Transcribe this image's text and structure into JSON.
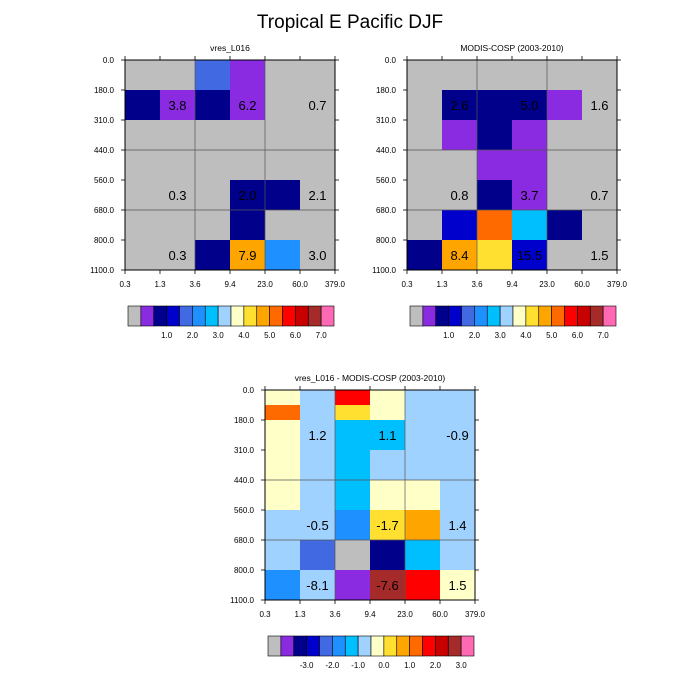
{
  "figure": {
    "title": "Tropical E Pacific DJF"
  },
  "colors": {
    "bg": "#ffffff",
    "text": "#000000",
    "grid": "#555555",
    "abs_scale": [
      "#bebebe",
      "#8a2be2",
      "#00008b",
      "#0000cd",
      "#4169e1",
      "#1e90ff",
      "#00bfff",
      "#a0d2ff",
      "#ffffc8",
      "#ffe030",
      "#ffa500",
      "#ff6a00",
      "#ff0000",
      "#c80000",
      "#a52a2a",
      "#ff69b4"
    ],
    "diff_scale": [
      "#bebebe",
      "#8a2be2",
      "#00008b",
      "#0000cd",
      "#4169e1",
      "#1e90ff",
      "#00bfff",
      "#a0d2ff",
      "#ffffc8",
      "#ffe030",
      "#ffa500",
      "#ff6a00",
      "#ff0000",
      "#c80000",
      "#a52a2a",
      "#ff69b4"
    ]
  },
  "chart_data": [
    {
      "type": "heatmap",
      "title": "vres_L016",
      "x_ticks": [
        "0.3",
        "1.3",
        "3.6",
        "9.4",
        "23.0",
        "60.0",
        "379.0"
      ],
      "y_ticks": [
        "0.0",
        "180.0",
        "310.0",
        "440.0",
        "560.0",
        "680.0",
        "800.0",
        "1100.0"
      ],
      "cells": [
        [
          0,
          0,
          4,
          1,
          0,
          0
        ],
        [
          2,
          1,
          2,
          1,
          0,
          0
        ],
        [
          0,
          0,
          0,
          0,
          0,
          0
        ],
        [
          0,
          0,
          0,
          0,
          0,
          0
        ],
        [
          0,
          0,
          0,
          2,
          2,
          0
        ],
        [
          0,
          0,
          0,
          2,
          0,
          0
        ],
        [
          0,
          0,
          2,
          10,
          5,
          0
        ]
      ],
      "regions": [
        {
          "label": "3.8",
          "col": 1,
          "row": 1
        },
        {
          "label": "6.2",
          "col": 3,
          "row": 1
        },
        {
          "label": "0.7",
          "col": 5,
          "row": 1
        },
        {
          "label": "0.3",
          "col": 1,
          "row": 4
        },
        {
          "label": "2.0",
          "col": 3,
          "row": 4
        },
        {
          "label": "2.1",
          "col": 5,
          "row": 4
        },
        {
          "label": "0.3",
          "col": 1,
          "row": 6
        },
        {
          "label": "7.9",
          "col": 3,
          "row": 6
        },
        {
          "label": "3.0",
          "col": 5,
          "row": 6
        }
      ],
      "colorbar_labels": [
        "1.0",
        "2.0",
        "3.0",
        "4.0",
        "5.0",
        "6.0",
        "7.0"
      ],
      "colorbar": "abs_scale"
    },
    {
      "type": "heatmap",
      "title": "MODIS-COSP (2003-2010)",
      "x_ticks": [
        "0.3",
        "1.3",
        "3.6",
        "9.4",
        "23.0",
        "60.0",
        "379.0"
      ],
      "y_ticks": [
        "0.0",
        "180.0",
        "310.0",
        "440.0",
        "560.0",
        "680.0",
        "800.0",
        "1100.0"
      ],
      "cells": [
        [
          0,
          0,
          0,
          0,
          0,
          0
        ],
        [
          0,
          2,
          2,
          2,
          1,
          0
        ],
        [
          0,
          1,
          2,
          1,
          0,
          0
        ],
        [
          0,
          0,
          1,
          1,
          0,
          0
        ],
        [
          0,
          0,
          2,
          1,
          0,
          0
        ],
        [
          0,
          3,
          11,
          6,
          2,
          0
        ],
        [
          2,
          10,
          9,
          3,
          0,
          0
        ]
      ],
      "regions": [
        {
          "label": "2.6",
          "col": 1,
          "row": 1
        },
        {
          "label": "5.0",
          "col": 3,
          "row": 1
        },
        {
          "label": "1.6",
          "col": 5,
          "row": 1
        },
        {
          "label": "0.8",
          "col": 1,
          "row": 4
        },
        {
          "label": "3.7",
          "col": 3,
          "row": 4
        },
        {
          "label": "0.7",
          "col": 5,
          "row": 4
        },
        {
          "label": "8.4",
          "col": 1,
          "row": 6
        },
        {
          "label": "15.5",
          "col": 3,
          "row": 6
        },
        {
          "label": "1.5",
          "col": 5,
          "row": 6
        }
      ],
      "colorbar_labels": [
        "1.0",
        "2.0",
        "3.0",
        "4.0",
        "5.0",
        "6.0",
        "7.0"
      ],
      "colorbar": "abs_scale"
    },
    {
      "type": "heatmap",
      "title": "vres_L016 - MODIS-COSP (2003-2010)",
      "x_ticks": [
        "0.3",
        "1.3",
        "3.6",
        "9.4",
        "23.0",
        "60.0",
        "379.0"
      ],
      "y_ticks": [
        "0.0",
        "180.0",
        "310.0",
        "440.0",
        "560.0",
        "680.0",
        "800.0",
        "1100.0"
      ],
      "cells": [
        [
          8,
          7,
          12,
          8,
          7,
          7
        ],
        [
          11,
          7,
          9,
          8,
          7,
          7
        ],
        [
          8,
          7,
          6,
          6,
          7,
          7
        ],
        [
          8,
          7,
          6,
          7,
          7,
          7
        ],
        [
          8,
          7,
          6,
          8,
          8,
          7
        ],
        [
          7,
          7,
          5,
          9,
          10,
          7
        ],
        [
          7,
          4,
          0,
          2,
          6,
          7
        ],
        [
          5,
          7,
          1,
          14,
          12,
          8
        ]
      ],
      "row_edges": [
        0,
        0.5,
        1,
        2,
        3,
        4,
        5,
        6,
        7
      ],
      "regions": [
        {
          "label": "1.2",
          "col": 1,
          "row": 1
        },
        {
          "label": "1.1",
          "col": 3,
          "row": 1
        },
        {
          "label": "-0.9",
          "col": 5,
          "row": 1
        },
        {
          "label": "-0.5",
          "col": 1,
          "row": 4
        },
        {
          "label": "-1.7",
          "col": 3,
          "row": 4
        },
        {
          "label": "1.4",
          "col": 5,
          "row": 4
        },
        {
          "label": "-8.1",
          "col": 1,
          "row": 6
        },
        {
          "label": "-7.6",
          "col": 3,
          "row": 6
        },
        {
          "label": "1.5",
          "col": 5,
          "row": 6
        }
      ],
      "colorbar_labels": [
        "-3.0",
        "-2.0",
        "-1.0",
        "0.0",
        "1.0",
        "2.0",
        "3.0"
      ],
      "colorbar": "diff_scale"
    }
  ]
}
